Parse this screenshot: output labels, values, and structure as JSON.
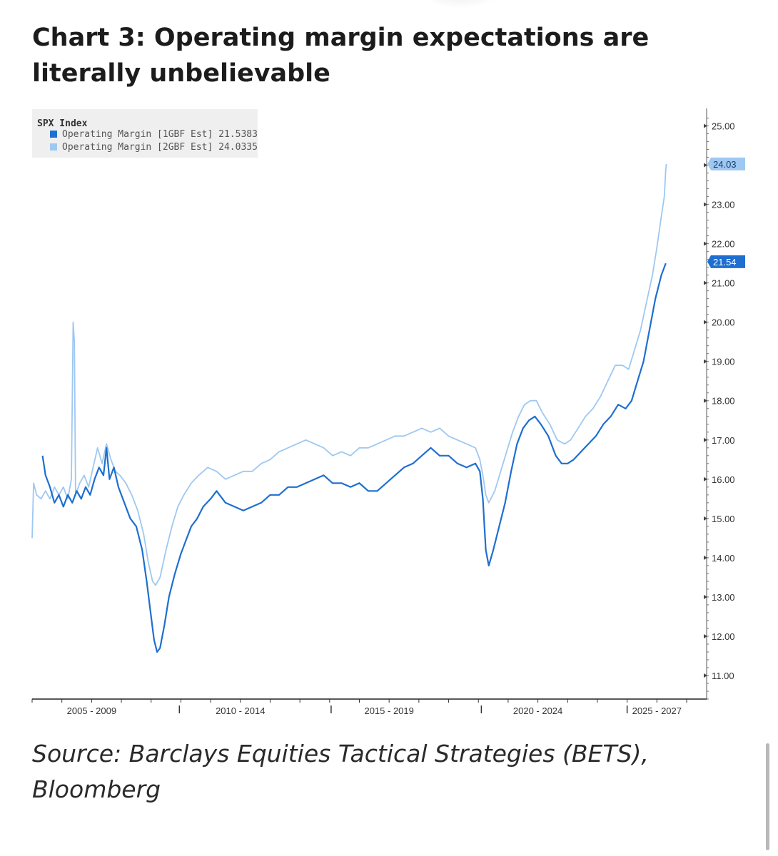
{
  "page": {
    "title": "Chart 3: Operating margin expectations are literally unbelievable",
    "source": "Source: Barclays Equities Tactical Strategies (BETS), Bloomberg"
  },
  "chart_data": {
    "type": "line",
    "legend": {
      "header": "SPX Index",
      "placement": "top-left",
      "entries": [
        {
          "label": "Operating Margin [1GBF Est] 21.5383",
          "color": "#1e6fcf"
        },
        {
          "label": "Operating Margin [2GBF Est] 24.0335",
          "color": "#9ec8f2"
        }
      ]
    },
    "x_axis": {
      "range": [
        2005.0,
        2027.0
      ],
      "tick_labels": [
        {
          "label": "2005 - 2009",
          "x": 2007.0
        },
        {
          "label": "2010 - 2014",
          "x": 2012.0
        },
        {
          "label": "2015 - 2019",
          "x": 2017.0
        },
        {
          "label": "2020 - 2024",
          "x": 2022.0
        },
        {
          "label": "2025 - 2027",
          "x": 2026.0
        }
      ],
      "separators": [
        2009.95,
        2015.05,
        2020.1,
        2025.0
      ]
    },
    "y_axis": {
      "position": "right",
      "range": [
        10.4,
        25.3
      ],
      "ticks": [
        "25.00",
        "24.00",
        "23.00",
        "22.00",
        "21.00",
        "20.00",
        "19.00",
        "18.00",
        "17.00",
        "16.00",
        "15.00",
        "14.00",
        "13.00",
        "12.00",
        "11.00"
      ]
    },
    "last_values": [
      {
        "label": "24.03",
        "value": 24.03,
        "color": "#9ec8f2",
        "text_color": "#1a3a66"
      },
      {
        "label": "21.54",
        "value": 21.54,
        "color": "#1e6fcf",
        "text_color": "#ffffff"
      }
    ],
    "series": [
      {
        "name": "Operating Margin [1GBF Est]",
        "color": "#1e6fcf",
        "points": [
          [
            2005.35,
            16.6
          ],
          [
            2005.45,
            16.1
          ],
          [
            2005.6,
            15.8
          ],
          [
            2005.75,
            15.4
          ],
          [
            2005.9,
            15.6
          ],
          [
            2006.05,
            15.3
          ],
          [
            2006.2,
            15.6
          ],
          [
            2006.35,
            15.4
          ],
          [
            2006.5,
            15.7
          ],
          [
            2006.65,
            15.5
          ],
          [
            2006.8,
            15.8
          ],
          [
            2006.95,
            15.6
          ],
          [
            2007.1,
            16.0
          ],
          [
            2007.25,
            16.3
          ],
          [
            2007.4,
            16.1
          ],
          [
            2007.5,
            16.8
          ],
          [
            2007.6,
            16.0
          ],
          [
            2007.75,
            16.3
          ],
          [
            2007.9,
            15.8
          ],
          [
            2008.1,
            15.4
          ],
          [
            2008.3,
            15.0
          ],
          [
            2008.5,
            14.8
          ],
          [
            2008.7,
            14.2
          ],
          [
            2008.85,
            13.4
          ],
          [
            2009.0,
            12.5
          ],
          [
            2009.1,
            11.9
          ],
          [
            2009.2,
            11.6
          ],
          [
            2009.3,
            11.7
          ],
          [
            2009.45,
            12.3
          ],
          [
            2009.6,
            13.0
          ],
          [
            2009.8,
            13.6
          ],
          [
            2010.0,
            14.1
          ],
          [
            2010.2,
            14.5
          ],
          [
            2010.35,
            14.8
          ],
          [
            2010.55,
            15.0
          ],
          [
            2010.75,
            15.3
          ],
          [
            2011.0,
            15.5
          ],
          [
            2011.2,
            15.7
          ],
          [
            2011.5,
            15.4
          ],
          [
            2011.8,
            15.3
          ],
          [
            2012.1,
            15.2
          ],
          [
            2012.4,
            15.3
          ],
          [
            2012.7,
            15.4
          ],
          [
            2013.0,
            15.6
          ],
          [
            2013.3,
            15.6
          ],
          [
            2013.6,
            15.8
          ],
          [
            2013.9,
            15.8
          ],
          [
            2014.2,
            15.9
          ],
          [
            2014.5,
            16.0
          ],
          [
            2014.8,
            16.1
          ],
          [
            2015.1,
            15.9
          ],
          [
            2015.4,
            15.9
          ],
          [
            2015.7,
            15.8
          ],
          [
            2016.0,
            15.9
          ],
          [
            2016.3,
            15.7
          ],
          [
            2016.6,
            15.7
          ],
          [
            2016.9,
            15.9
          ],
          [
            2017.2,
            16.1
          ],
          [
            2017.5,
            16.3
          ],
          [
            2017.8,
            16.4
          ],
          [
            2018.1,
            16.6
          ],
          [
            2018.4,
            16.8
          ],
          [
            2018.7,
            16.6
          ],
          [
            2019.0,
            16.6
          ],
          [
            2019.3,
            16.4
          ],
          [
            2019.6,
            16.3
          ],
          [
            2019.9,
            16.4
          ],
          [
            2020.05,
            16.2
          ],
          [
            2020.15,
            15.5
          ],
          [
            2020.25,
            14.2
          ],
          [
            2020.35,
            13.8
          ],
          [
            2020.5,
            14.2
          ],
          [
            2020.7,
            14.8
          ],
          [
            2020.9,
            15.4
          ],
          [
            2021.1,
            16.2
          ],
          [
            2021.3,
            16.9
          ],
          [
            2021.5,
            17.3
          ],
          [
            2021.7,
            17.5
          ],
          [
            2021.9,
            17.6
          ],
          [
            2022.1,
            17.4
          ],
          [
            2022.35,
            17.1
          ],
          [
            2022.6,
            16.6
          ],
          [
            2022.8,
            16.4
          ],
          [
            2023.0,
            16.4
          ],
          [
            2023.2,
            16.5
          ],
          [
            2023.45,
            16.7
          ],
          [
            2023.7,
            16.9
          ],
          [
            2023.95,
            17.1
          ],
          [
            2024.2,
            17.4
          ],
          [
            2024.45,
            17.6
          ],
          [
            2024.7,
            17.9
          ],
          [
            2024.95,
            17.8
          ],
          [
            2025.15,
            18.0
          ],
          [
            2025.35,
            18.5
          ],
          [
            2025.55,
            19.0
          ],
          [
            2025.75,
            19.8
          ],
          [
            2025.95,
            20.6
          ],
          [
            2026.15,
            21.2
          ],
          [
            2026.3,
            21.5
          ]
        ]
      },
      {
        "name": "Operating Margin [2GBF Est]",
        "color": "#9ec8f2",
        "points": [
          [
            2005.0,
            14.5
          ],
          [
            2005.05,
            15.9
          ],
          [
            2005.15,
            15.6
          ],
          [
            2005.3,
            15.5
          ],
          [
            2005.45,
            15.7
          ],
          [
            2005.6,
            15.5
          ],
          [
            2005.75,
            15.8
          ],
          [
            2005.9,
            15.6
          ],
          [
            2006.05,
            15.8
          ],
          [
            2006.2,
            15.5
          ],
          [
            2006.32,
            16.0
          ],
          [
            2006.38,
            20.0
          ],
          [
            2006.42,
            19.5
          ],
          [
            2006.46,
            15.6
          ],
          [
            2006.6,
            15.9
          ],
          [
            2006.75,
            16.1
          ],
          [
            2006.9,
            15.8
          ],
          [
            2007.05,
            16.3
          ],
          [
            2007.2,
            16.8
          ],
          [
            2007.35,
            16.4
          ],
          [
            2007.5,
            16.9
          ],
          [
            2007.65,
            16.5
          ],
          [
            2007.8,
            16.2
          ],
          [
            2007.95,
            16.1
          ],
          [
            2008.15,
            15.9
          ],
          [
            2008.35,
            15.6
          ],
          [
            2008.55,
            15.2
          ],
          [
            2008.75,
            14.6
          ],
          [
            2008.9,
            13.9
          ],
          [
            2009.05,
            13.4
          ],
          [
            2009.15,
            13.3
          ],
          [
            2009.3,
            13.5
          ],
          [
            2009.5,
            14.2
          ],
          [
            2009.7,
            14.8
          ],
          [
            2009.9,
            15.3
          ],
          [
            2010.1,
            15.6
          ],
          [
            2010.35,
            15.9
          ],
          [
            2010.6,
            16.1
          ],
          [
            2010.9,
            16.3
          ],
          [
            2011.2,
            16.2
          ],
          [
            2011.5,
            16.0
          ],
          [
            2011.8,
            16.1
          ],
          [
            2012.1,
            16.2
          ],
          [
            2012.4,
            16.2
          ],
          [
            2012.7,
            16.4
          ],
          [
            2013.0,
            16.5
          ],
          [
            2013.3,
            16.7
          ],
          [
            2013.6,
            16.8
          ],
          [
            2013.9,
            16.9
          ],
          [
            2014.2,
            17.0
          ],
          [
            2014.5,
            16.9
          ],
          [
            2014.8,
            16.8
          ],
          [
            2015.1,
            16.6
          ],
          [
            2015.4,
            16.7
          ],
          [
            2015.7,
            16.6
          ],
          [
            2016.0,
            16.8
          ],
          [
            2016.3,
            16.8
          ],
          [
            2016.6,
            16.9
          ],
          [
            2016.9,
            17.0
          ],
          [
            2017.2,
            17.1
          ],
          [
            2017.5,
            17.1
          ],
          [
            2017.8,
            17.2
          ],
          [
            2018.1,
            17.3
          ],
          [
            2018.4,
            17.2
          ],
          [
            2018.7,
            17.3
          ],
          [
            2019.0,
            17.1
          ],
          [
            2019.3,
            17.0
          ],
          [
            2019.6,
            16.9
          ],
          [
            2019.9,
            16.8
          ],
          [
            2020.05,
            16.5
          ],
          [
            2020.15,
            16.1
          ],
          [
            2020.25,
            15.6
          ],
          [
            2020.35,
            15.4
          ],
          [
            2020.55,
            15.7
          ],
          [
            2020.75,
            16.2
          ],
          [
            2020.95,
            16.7
          ],
          [
            2021.15,
            17.2
          ],
          [
            2021.35,
            17.6
          ],
          [
            2021.55,
            17.9
          ],
          [
            2021.75,
            18.0
          ],
          [
            2021.95,
            18.0
          ],
          [
            2022.15,
            17.7
          ],
          [
            2022.4,
            17.4
          ],
          [
            2022.65,
            17.0
          ],
          [
            2022.9,
            16.9
          ],
          [
            2023.1,
            17.0
          ],
          [
            2023.35,
            17.3
          ],
          [
            2023.6,
            17.6
          ],
          [
            2023.85,
            17.8
          ],
          [
            2024.1,
            18.1
          ],
          [
            2024.35,
            18.5
          ],
          [
            2024.6,
            18.9
          ],
          [
            2024.85,
            18.9
          ],
          [
            2025.05,
            18.8
          ],
          [
            2025.25,
            19.3
          ],
          [
            2025.45,
            19.8
          ],
          [
            2025.65,
            20.5
          ],
          [
            2025.85,
            21.2
          ],
          [
            2026.0,
            21.9
          ],
          [
            2026.15,
            22.7
          ],
          [
            2026.25,
            23.2
          ],
          [
            2026.3,
            23.9
          ],
          [
            2026.32,
            24.03
          ]
        ]
      }
    ]
  }
}
